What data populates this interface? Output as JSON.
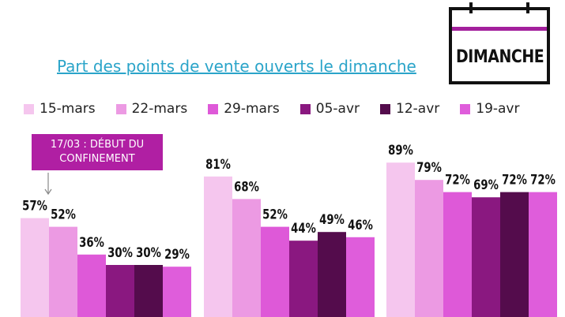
{
  "title": "Part des points de vente ouverts le dimanche",
  "badge": {
    "label": "DIMANCHE",
    "icon": "calendar-icon",
    "accent": "#a31f9c"
  },
  "callout": {
    "line1": "17/03 : DÉBUT DU",
    "line2": "CONFINEMENT",
    "color": "#b01fa3"
  },
  "legend": [
    {
      "label": "15-mars",
      "color": "#f5c6ee"
    },
    {
      "label": "22-mars",
      "color": "#ec9ae3"
    },
    {
      "label": "29-mars",
      "color": "#de59d8"
    },
    {
      "label": "05-avr",
      "color": "#8a1880"
    },
    {
      "label": "12-avr",
      "color": "#540c4c"
    },
    {
      "label": "19-avr",
      "color": "#df5ddb"
    }
  ],
  "chart_data": {
    "type": "bar",
    "categories": [
      "",
      "",
      ""
    ],
    "series": [
      {
        "name": "15-mars",
        "values": [
          57,
          81,
          89
        ],
        "color": "#f5c6ee"
      },
      {
        "name": "22-mars",
        "values": [
          52,
          68,
          79
        ],
        "color": "#ec9ae3"
      },
      {
        "name": "29-mars",
        "values": [
          36,
          52,
          72
        ],
        "color": "#de59d8"
      },
      {
        "name": "05-avr",
        "values": [
          30,
          44,
          69
        ],
        "color": "#8a1880"
      },
      {
        "name": "12-avr",
        "values": [
          30,
          49,
          72
        ],
        "color": "#540c4c"
      },
      {
        "name": "19-avr",
        "values": [
          29,
          46,
          72
        ],
        "color": "#df5ddb"
      }
    ],
    "value_suffix": "%",
    "legend_position": "top",
    "grid": false,
    "ylim": [
      0,
      100
    ]
  }
}
